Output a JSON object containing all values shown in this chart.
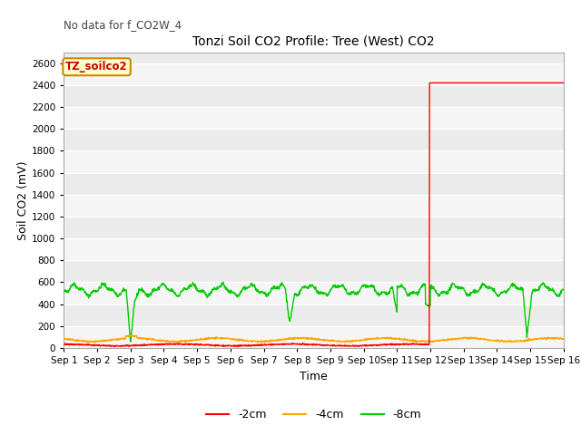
{
  "title": "Tonzi Soil CO2 Profile: Tree (West) CO2",
  "no_data_text": "No data for f_CO2W_4",
  "legend_box_text": "TZ_soilco2",
  "ylabel": "Soil CO2 (mV)",
  "xlabel": "Time",
  "ylim": [
    0,
    2700
  ],
  "yticks": [
    0,
    200,
    400,
    600,
    800,
    1000,
    1200,
    1400,
    1600,
    1800,
    2000,
    2200,
    2400,
    2600
  ],
  "bg_color": "#ffffff",
  "plot_bg_color": "#ebebeb",
  "line_colors": {
    "minus2cm": "#ff0000",
    "minus4cm": "#ffa500",
    "minus8cm": "#00cc00"
  },
  "legend_entries": [
    "-2cm",
    "-4cm",
    "-8cm"
  ],
  "xtick_labels": [
    "Sep 1",
    "Sep 2",
    "Sep 3",
    "Sep 4",
    "Sep 5",
    "Sep 6",
    "Sep 7",
    "Sep 8",
    "Sep 9",
    "Sep 10",
    "Sep 11",
    "Sep 12",
    "Sep 13",
    "Sep 14",
    "Sep 15",
    "Sep 16"
  ],
  "spike_value": 2420,
  "spike_day": 11.97,
  "green_base": 520,
  "green_min": 310,
  "orange_base": 75,
  "red_base": 30
}
